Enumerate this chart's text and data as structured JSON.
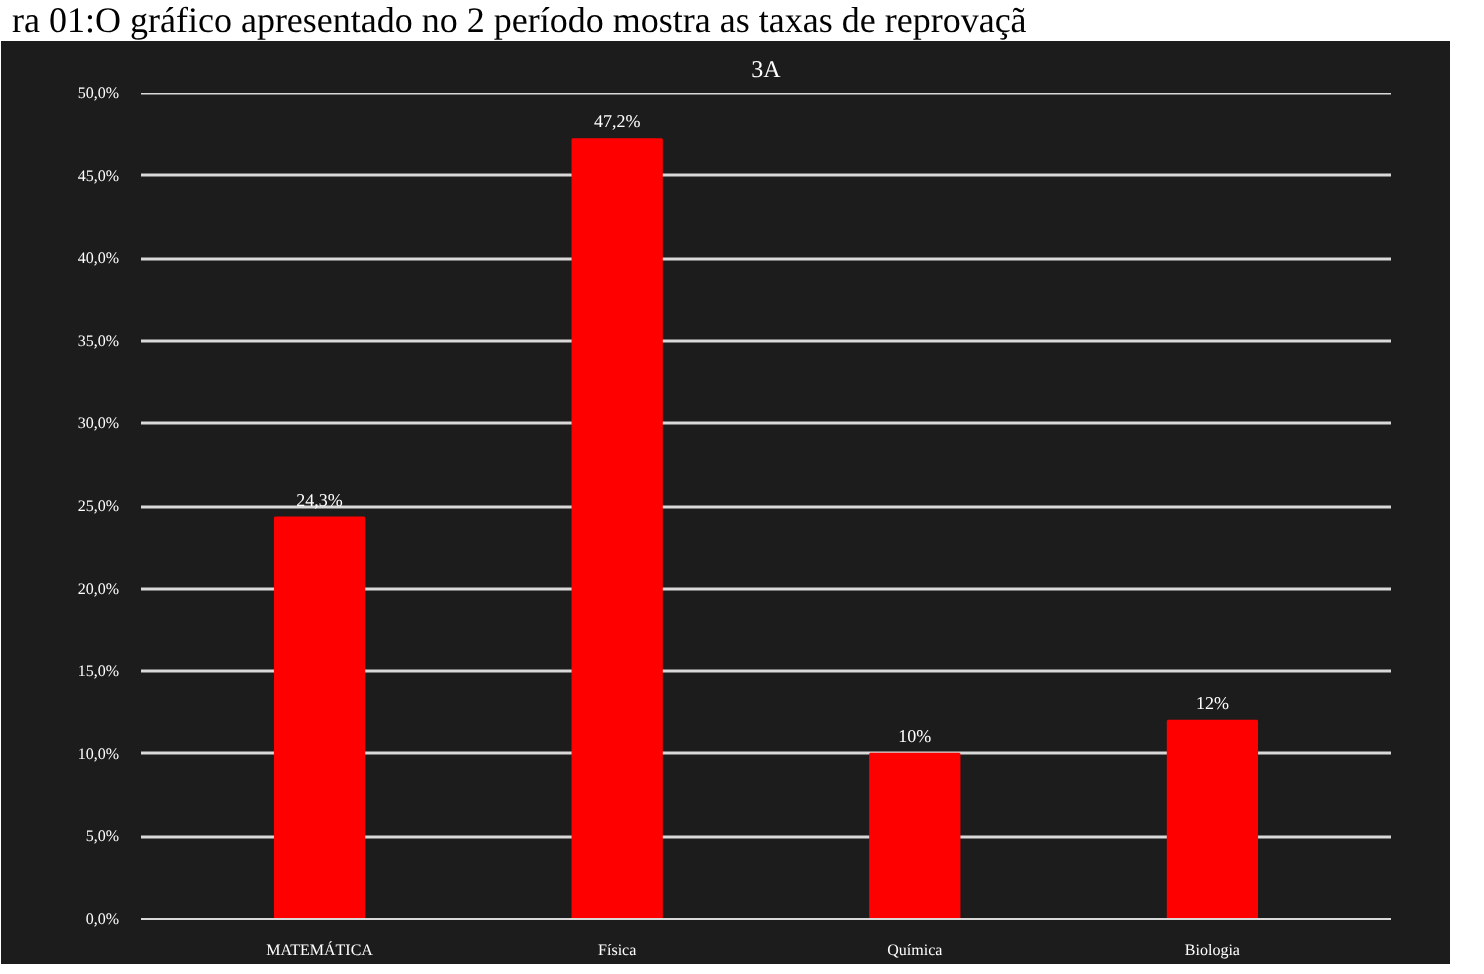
{
  "chart_data": {
    "type": "bar",
    "title": "3A",
    "annotations": [
      "ra 01:O gráfico apresentado no 2 período mostra as taxas de reprovaçã"
    ],
    "categories": [
      "MATEMÁTICA",
      "Física",
      "Química",
      "Biologia"
    ],
    "values": [
      24.3,
      47.2,
      10,
      12
    ],
    "color": "#ff0000",
    "value_labels": [
      "24,3%",
      "47,2%",
      "10%",
      "12%"
    ],
    "ylim": [
      0,
      50
    ],
    "yticks": [
      {
        "value": 0,
        "label": "0,0%"
      },
      {
        "value": 5,
        "label": "5,0%"
      },
      {
        "value": 10,
        "label": "10,0%"
      },
      {
        "value": 15,
        "label": "15,0%"
      },
      {
        "value": 20,
        "label": "20,0%"
      },
      {
        "value": 25,
        "label": "25,0%"
      },
      {
        "value": 30,
        "label": "30,0%"
      },
      {
        "value": 35,
        "label": "35,0%"
      },
      {
        "value": 40,
        "label": "40,0%"
      },
      {
        "value": 45,
        "label": "45,0%"
      },
      {
        "value": 50,
        "label": "50,0%"
      }
    ],
    "grid": "y"
  }
}
